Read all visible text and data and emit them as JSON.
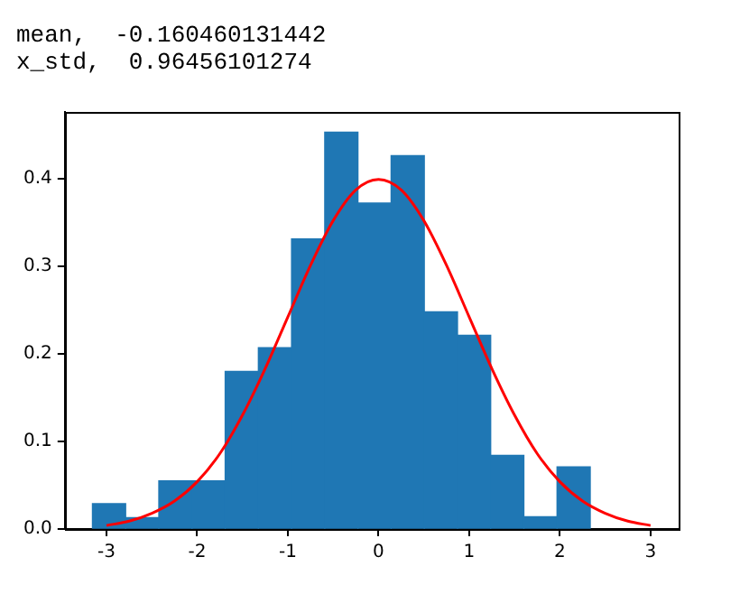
{
  "chart_data": {
    "type": "histogram",
    "annotations": [
      "mean,  -0.160460131442",
      "x_std,  0.96456101274"
    ],
    "bins": [
      -3.155,
      -2.789,
      -2.423,
      -2.057,
      -1.691,
      -1.325,
      -0.959,
      -0.593,
      -0.227,
      0.139,
      0.505,
      0.871,
      1.237,
      1.603,
      1.969,
      2.335
    ],
    "values": [
      0.029,
      0.013,
      0.055,
      0.055,
      0.18,
      0.207,
      0.331,
      0.453,
      0.372,
      0.426,
      0.248,
      0.221,
      0.084,
      0.014,
      0.071
    ],
    "color": "#1f77b4",
    "series": [
      {
        "type": "line",
        "color": "#ff0000",
        "x": [
          -3,
          -2.75,
          -2.5,
          -2.25,
          -2,
          -1.75,
          -1.5,
          -1.25,
          -1,
          -0.75,
          -0.5,
          -0.25,
          0,
          0.25,
          0.5,
          0.75,
          1,
          1.25,
          1.5,
          1.75,
          2,
          2.25,
          2.5,
          2.75,
          3
        ],
        "values": [
          0.004,
          0.009,
          0.018,
          0.032,
          0.054,
          0.086,
          0.13,
          0.183,
          0.242,
          0.301,
          0.352,
          0.387,
          0.399,
          0.387,
          0.352,
          0.301,
          0.242,
          0.183,
          0.13,
          0.086,
          0.054,
          0.032,
          0.018,
          0.009,
          0.004
        ]
      }
    ],
    "xlim": [
      -3.46,
      3.31
    ],
    "xticks": [
      -3,
      -2,
      -1,
      0,
      1,
      2,
      3
    ],
    "ylim": [
      0,
      0.476
    ],
    "yticks": [
      {
        "value": 0,
        "label": "0.0"
      },
      {
        "value": 0.1,
        "label": "0.1"
      },
      {
        "value": 0.2,
        "label": "0.2"
      },
      {
        "value": 0.3,
        "label": "0.3"
      },
      {
        "value": 0.4,
        "label": "0.4"
      }
    ],
    "grid": false,
    "legend": false,
    "marker": "none",
    "line_style": "solid"
  }
}
